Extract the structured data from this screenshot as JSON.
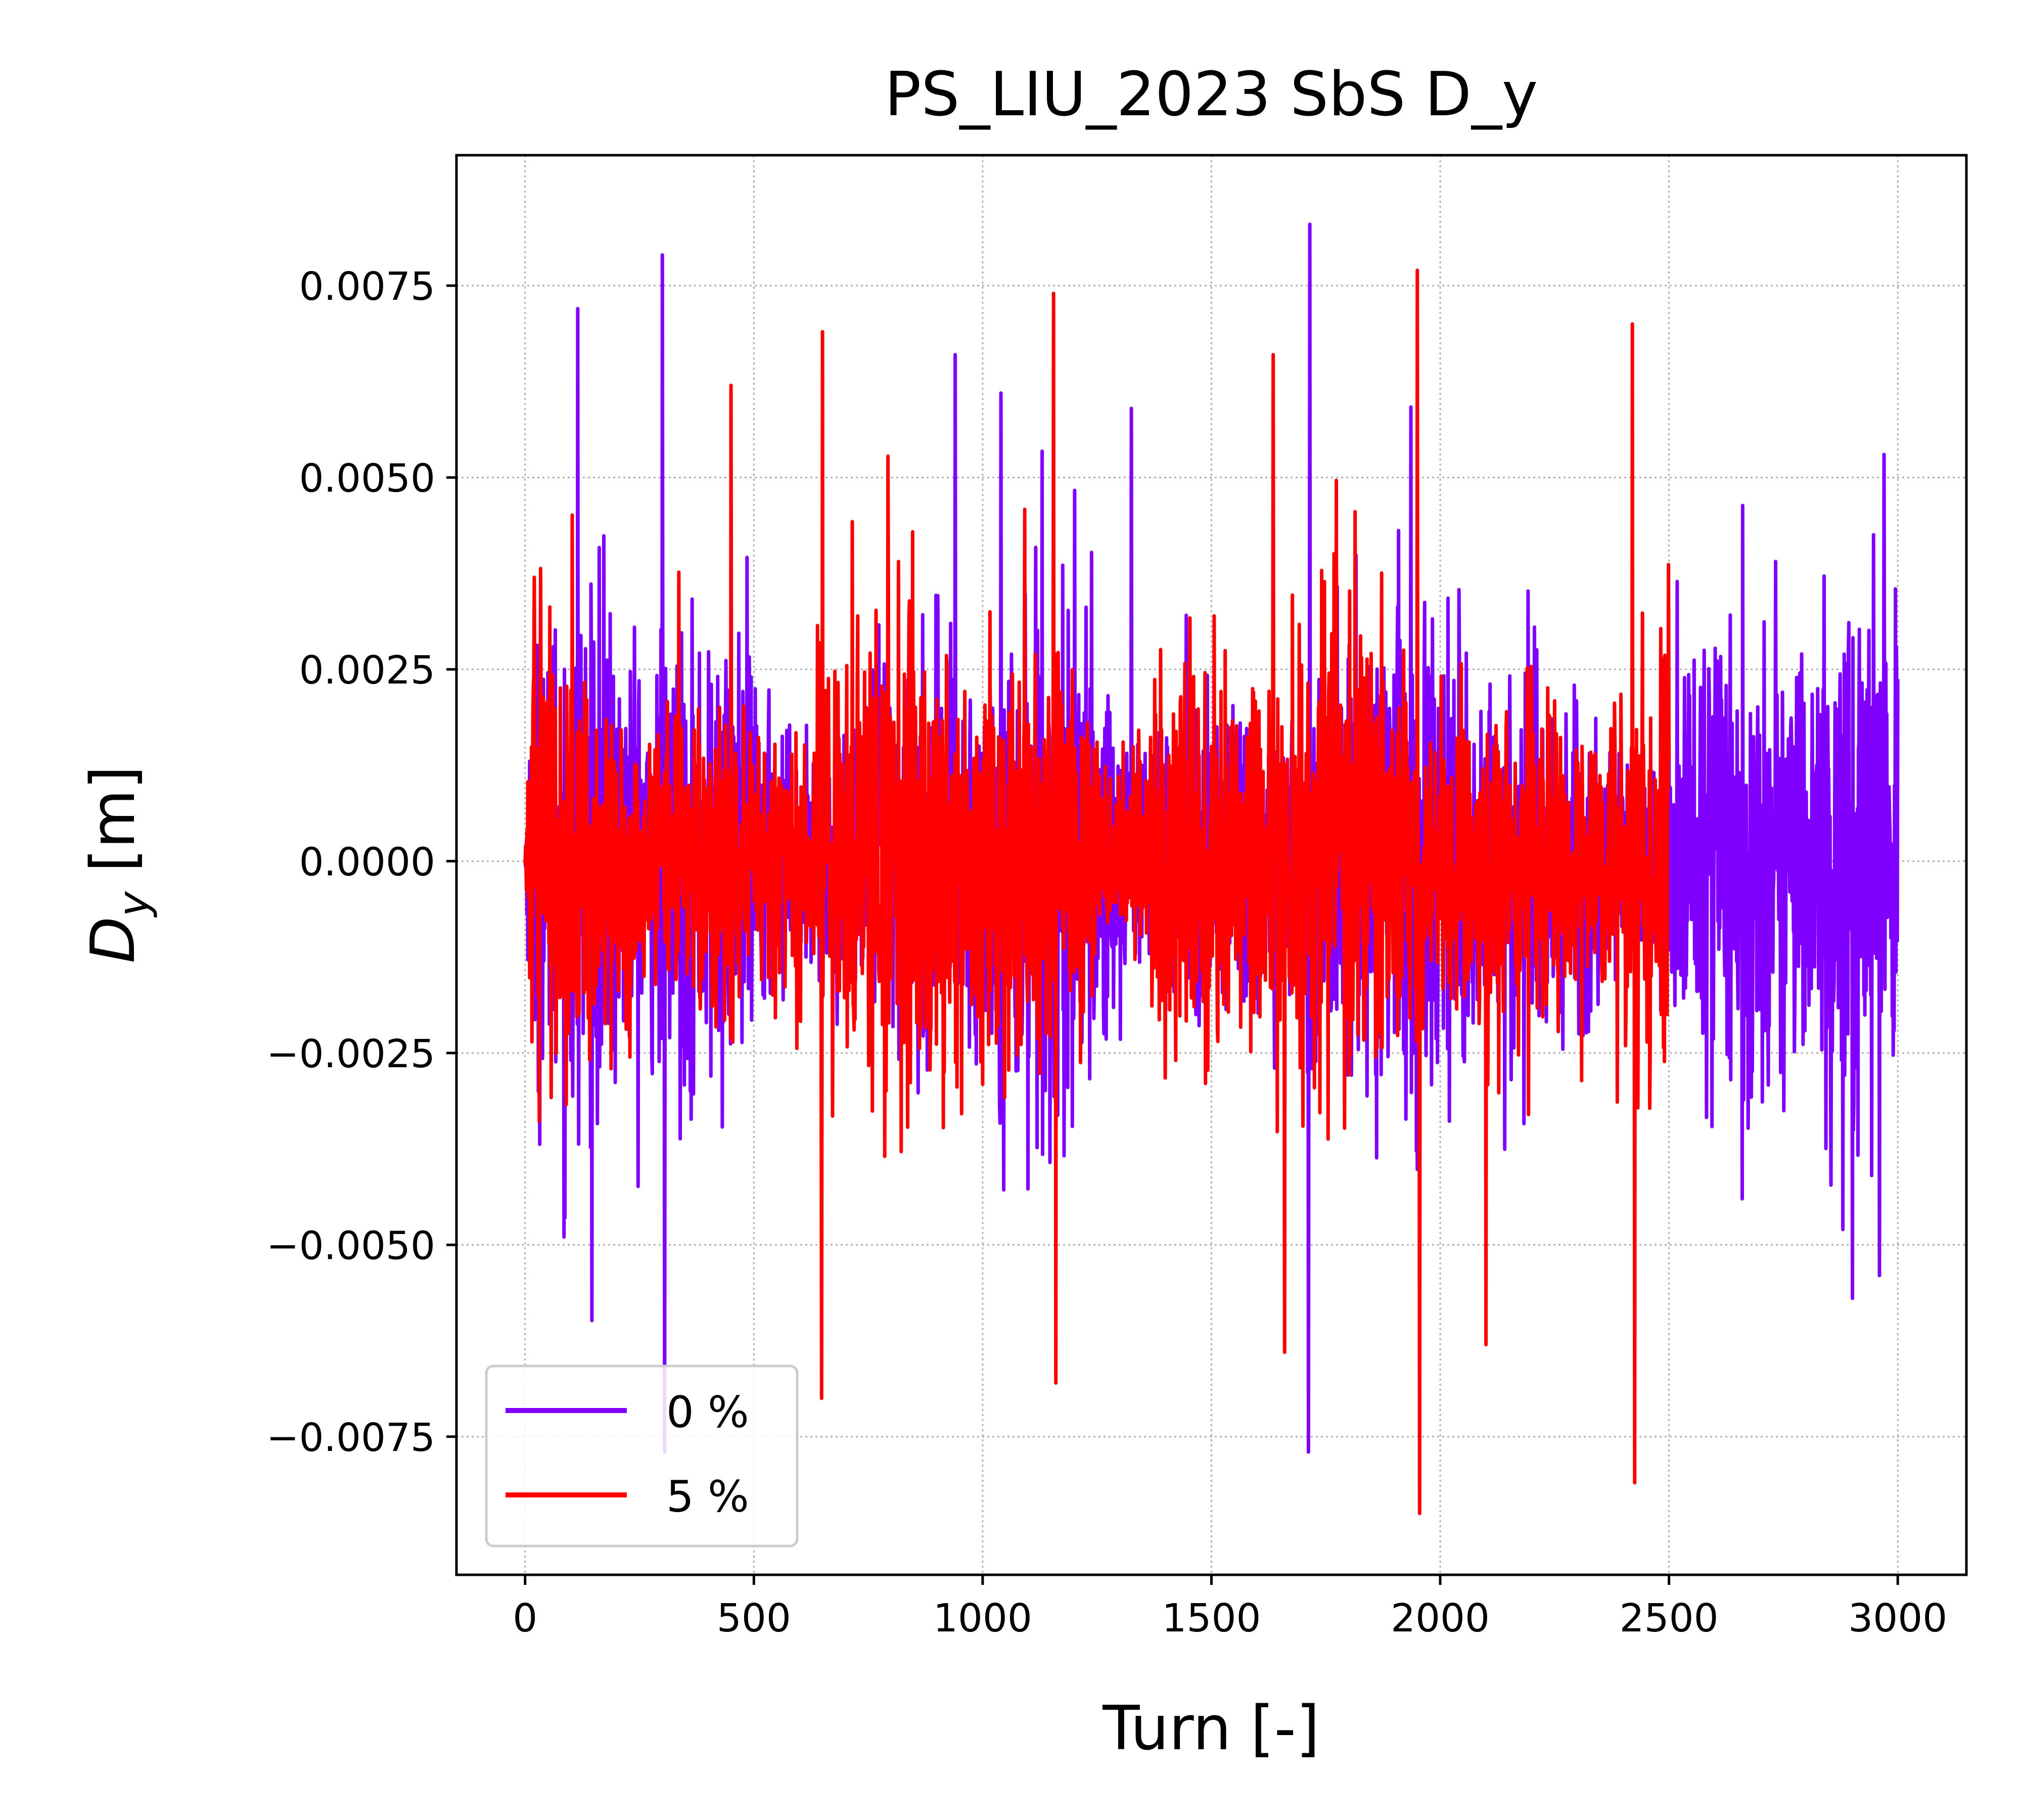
{
  "chart_data": {
    "type": "line",
    "title": "PS_LIU_2023 SbS D_y",
    "xlabel": "Turn [-]",
    "ylabel": "D_y [m]",
    "xlim": [
      -150,
      3150
    ],
    "ylim": [
      -0.0093,
      0.0092
    ],
    "xticks": [
      0,
      500,
      1000,
      1500,
      2000,
      2500,
      3000
    ],
    "xtick_labels": [
      "0",
      "500",
      "1000",
      "1500",
      "2000",
      "2500",
      "3000"
    ],
    "yticks": [
      -0.0075,
      -0.005,
      -0.0025,
      0.0,
      0.0025,
      0.005,
      0.0075
    ],
    "ytick_labels": [
      "−0.0075",
      "−0.0050",
      "−0.0025",
      "0.0000",
      "0.0025",
      "0.0050",
      "0.0075"
    ],
    "grid": true,
    "legend_position": "lower-left",
    "series": [
      {
        "name": "0 %",
        "color": "#7f00ff",
        "turn_range": [
          0,
          3000
        ],
        "min_value": -0.0077,
        "max_value": 0.0083,
        "peaks": [
          {
            "x": 115,
            "y": 0.0072
          },
          {
            "x": 300,
            "y": 0.0079
          },
          {
            "x": 305,
            "y": -0.0077
          },
          {
            "x": 940,
            "y": 0.0066
          },
          {
            "x": 1715,
            "y": 0.0083
          },
          {
            "x": 1712,
            "y": -0.0077
          },
          {
            "x": 1040,
            "y": 0.0061
          },
          {
            "x": 1325,
            "y": 0.0059
          },
          {
            "x": 2970,
            "y": 0.0053
          },
          {
            "x": 2960,
            "y": -0.0054
          },
          {
            "x": 2880,
            "y": -0.0048
          },
          {
            "x": 2660,
            "y": -0.0044
          }
        ]
      },
      {
        "name": "5 %",
        "color": "#ff0000",
        "turn_range": [
          0,
          2500
        ],
        "min_value": -0.0085,
        "max_value": 0.0077,
        "peaks": [
          {
            "x": 1155,
            "y": 0.0074
          },
          {
            "x": 1950,
            "y": 0.0077
          },
          {
            "x": 1955,
            "y": -0.0085
          },
          {
            "x": 2420,
            "y": 0.007
          },
          {
            "x": 2425,
            "y": -0.0081
          },
          {
            "x": 650,
            "y": 0.0069
          },
          {
            "x": 648,
            "y": -0.007
          },
          {
            "x": 1160,
            "y": -0.0068
          },
          {
            "x": 1660,
            "y": -0.0064
          },
          {
            "x": 450,
            "y": 0.0062
          },
          {
            "x": 1635,
            "y": 0.0066
          },
          {
            "x": 2100,
            "y": -0.0063
          }
        ]
      }
    ]
  }
}
